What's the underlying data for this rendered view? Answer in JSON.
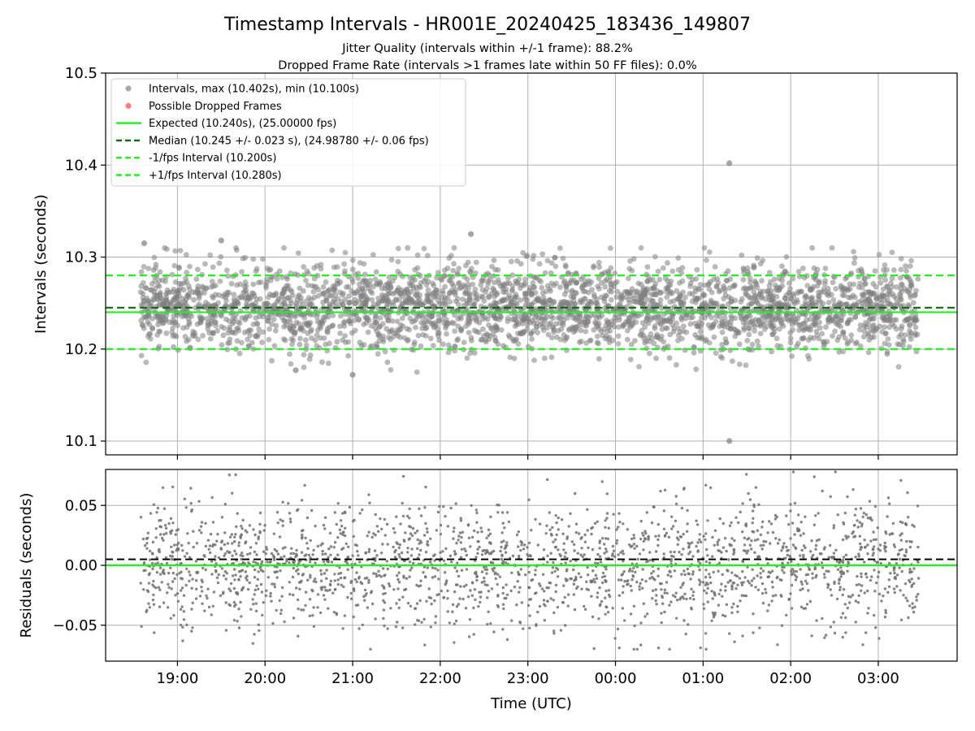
{
  "title": "Timestamp Intervals - HR001E_20240425_183436_149807",
  "subtitle_1": "Jitter Quality (intervals within +/-1 frame): 88.2%",
  "subtitle_2": "Dropped Frame Rate (intervals >1 frames late within 50 FF files): 0.0%",
  "colors": {
    "points": "#808080",
    "dropped": "#ff6666",
    "expected": "#22ee22",
    "median": "#116611",
    "interval_bounds": "#22ee22",
    "grid": "#b0b0b0"
  },
  "chart_data": [
    {
      "name": "intervals-panel",
      "type": "scatter",
      "xlabel": "",
      "ylabel": "Intervals (seconds)",
      "xlim": [
        18.18,
        27.9
      ],
      "ylim": [
        10.085,
        10.5
      ],
      "y_ticks": [
        10.1,
        10.2,
        10.3,
        10.4,
        10.5
      ],
      "y_tick_labels": [
        "10.1",
        "10.2",
        "10.3",
        "10.4",
        "10.5"
      ],
      "grid": true,
      "legend_position": "upper-left",
      "legend": [
        {
          "label": "Intervals, max (10.402s), min (10.100s)",
          "kind": "point",
          "color": "#999999"
        },
        {
          "label": "Possible Dropped Frames",
          "kind": "point",
          "color": "#ff6666"
        },
        {
          "label": "Expected (10.240s), (25.00000 fps)",
          "kind": "line",
          "style": "solid",
          "color": "#22ee22"
        },
        {
          "label": "Median (10.245 +/- 0.023 s), (24.98780 +/- 0.06 fps)",
          "kind": "line",
          "style": "dashed",
          "color": "#116611"
        },
        {
          "label": "-1/fps Interval (10.200s)",
          "kind": "line",
          "style": "dashed",
          "color": "#22ee22"
        },
        {
          "label": "+1/fps Interval (10.280s)",
          "kind": "line",
          "style": "dashed",
          "color": "#22ee22"
        }
      ],
      "reference_lines": {
        "expected": 10.24,
        "median": 10.245,
        "minus_one_frame": 10.2,
        "plus_one_frame": 10.28
      },
      "series": {
        "name": "Intervals",
        "x_start": 18.58,
        "x_end": 27.46,
        "count": 3100,
        "center": 10.245,
        "spread_sd": 0.023,
        "max": 10.402,
        "min": 10.1,
        "extreme_points": [
          {
            "x": 25.3,
            "y": 10.402
          },
          {
            "x": 25.3,
            "y": 10.1
          },
          {
            "x": 21.0,
            "y": 10.172
          },
          {
            "x": 20.35,
            "y": 10.177
          },
          {
            "x": 19.5,
            "y": 10.318
          },
          {
            "x": 22.35,
            "y": 10.325
          },
          {
            "x": 18.62,
            "y": 10.315
          }
        ],
        "dropped_frames": []
      }
    },
    {
      "name": "residuals-panel",
      "type": "scatter",
      "xlabel": "Time (UTC)",
      "ylabel": "Residuals (seconds)",
      "xlim": [
        18.18,
        27.9
      ],
      "ylim": [
        -0.08,
        0.08
      ],
      "x_ticks": [
        19,
        20,
        21,
        22,
        23,
        24,
        25,
        26,
        27
      ],
      "x_tick_labels": [
        "19:00",
        "20:00",
        "21:00",
        "22:00",
        "23:00",
        "00:00",
        "01:00",
        "02:00",
        "03:00"
      ],
      "y_ticks": [
        -0.05,
        0.0,
        0.05
      ],
      "y_tick_labels": [
        "−0.05",
        "0.00",
        "0.05"
      ],
      "grid": true,
      "reference_lines": {
        "zero": 0.0,
        "median_offset": 0.005
      },
      "series": {
        "name": "Residuals",
        "x_start": 18.58,
        "x_end": 27.46,
        "count": 2200,
        "center": 0.0,
        "spread_sd": 0.026,
        "max": 0.078,
        "min": -0.07
      }
    }
  ]
}
